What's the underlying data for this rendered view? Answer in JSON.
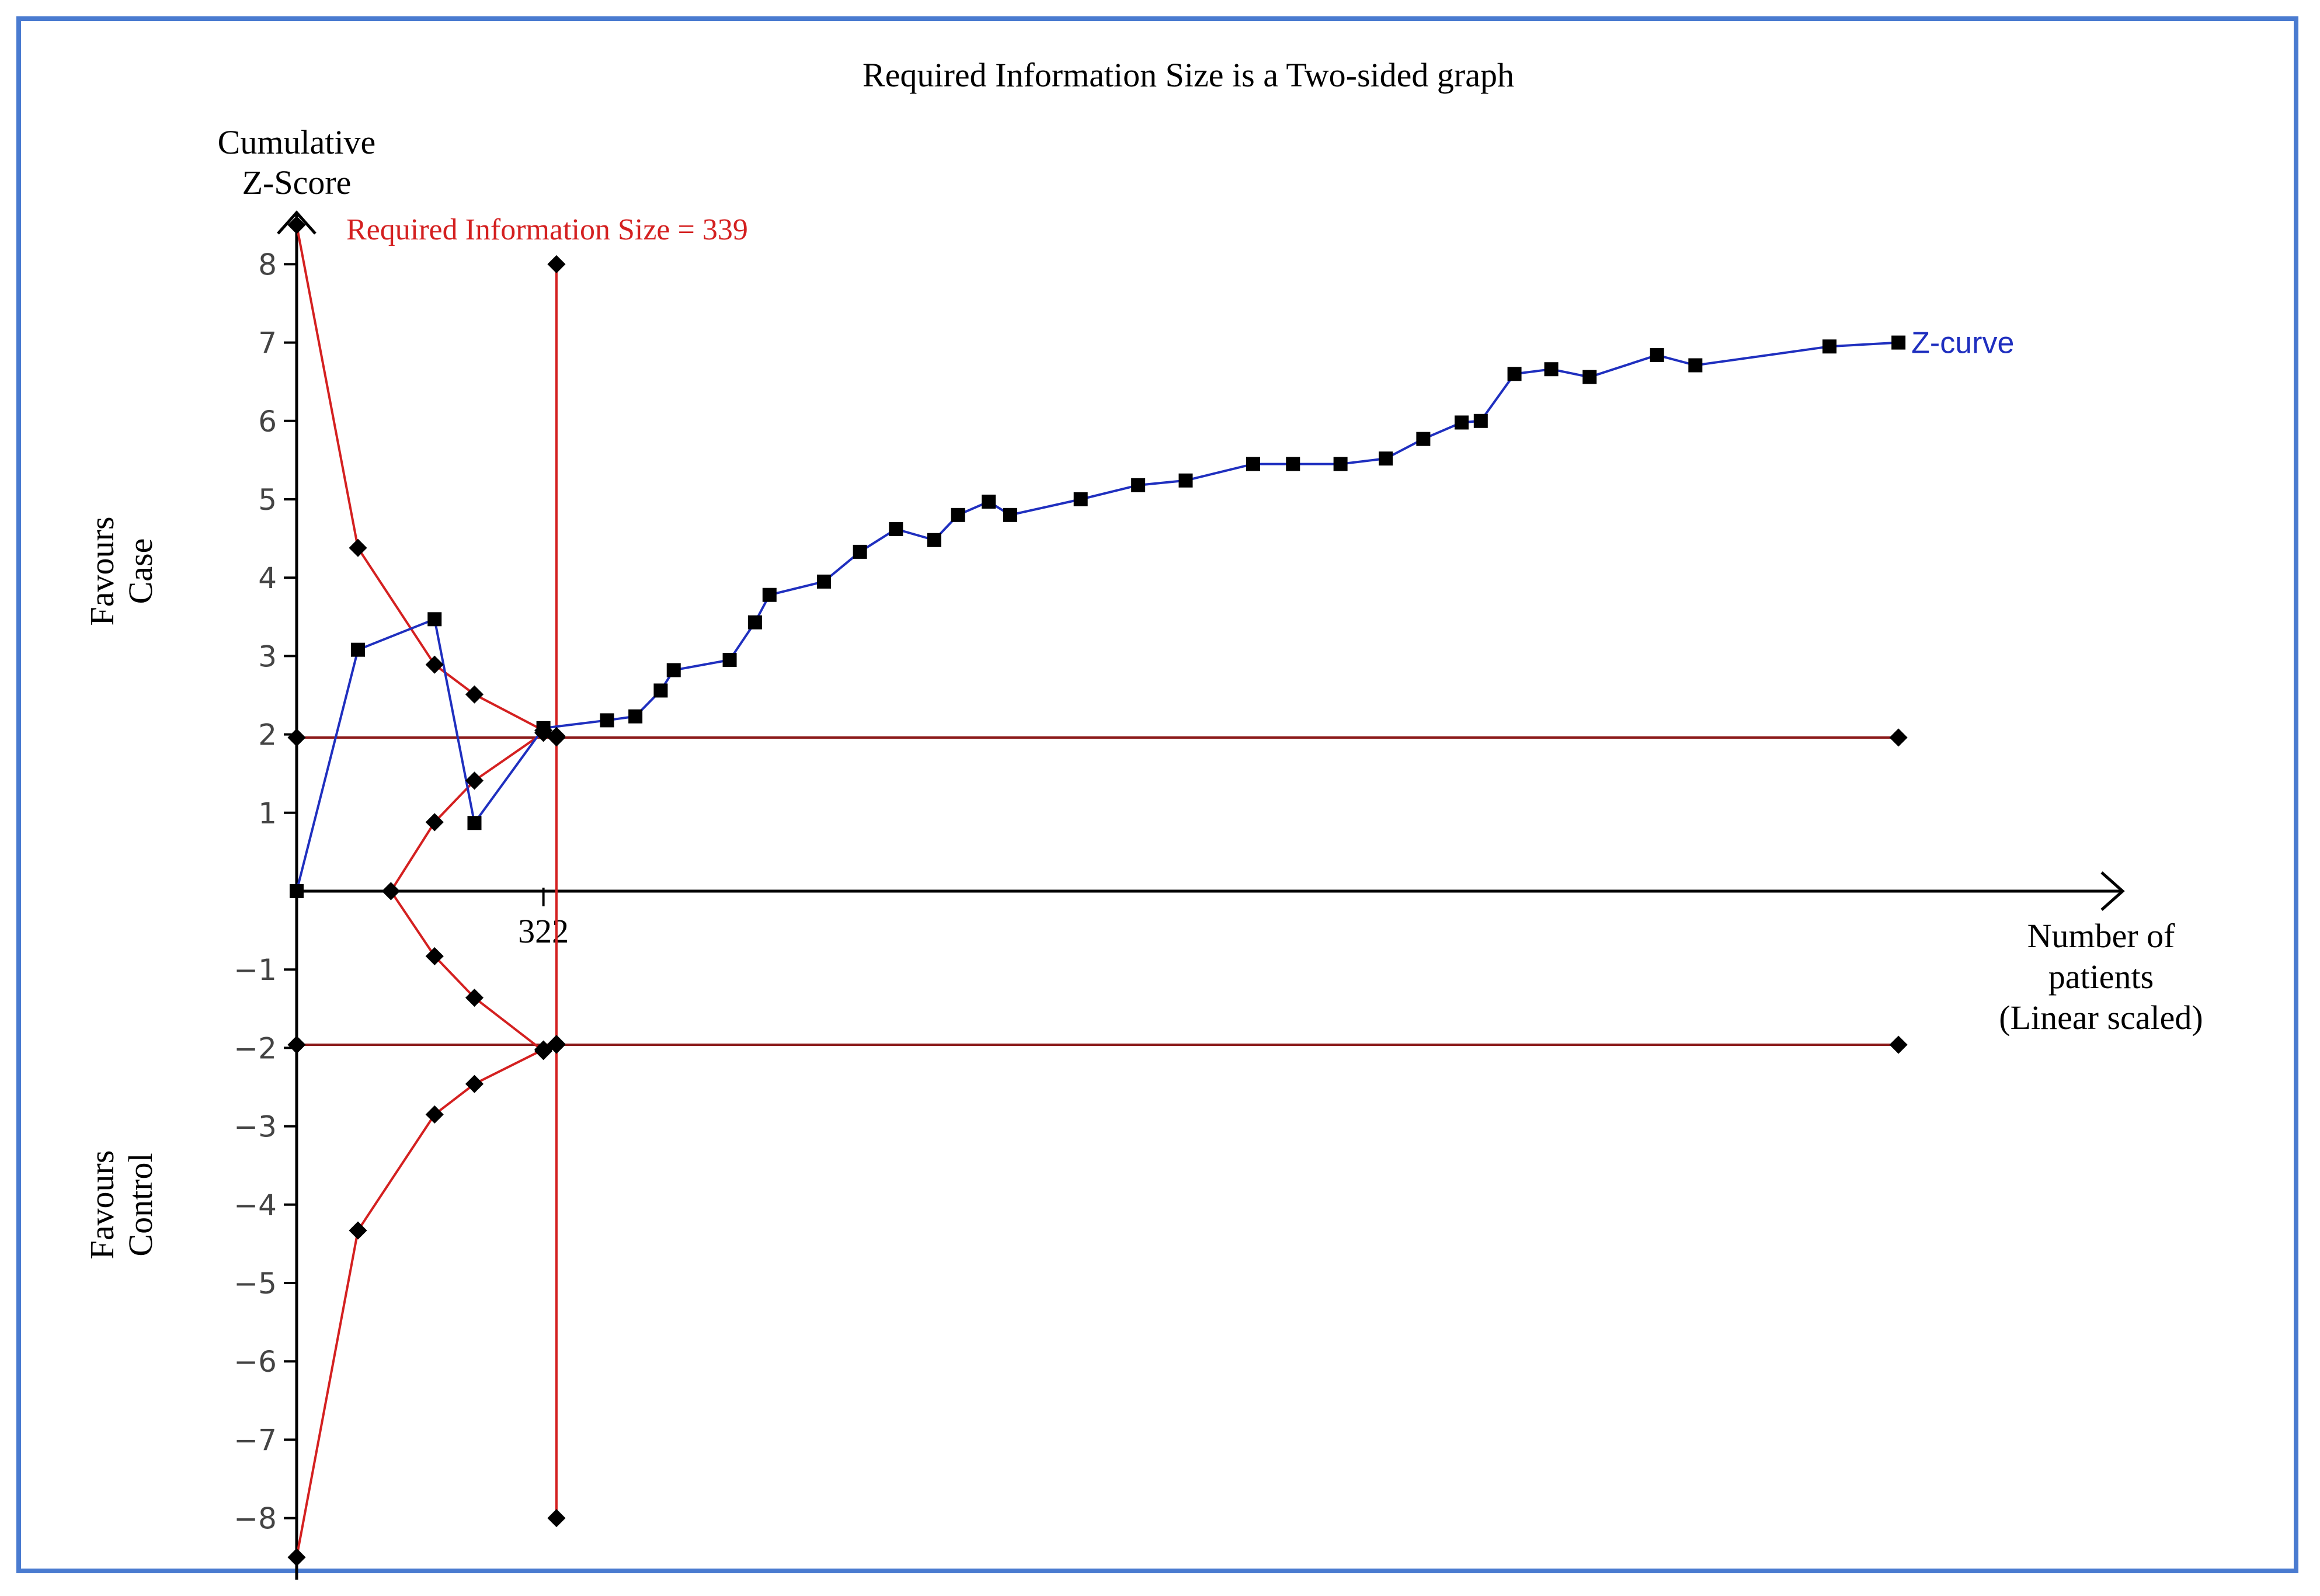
{
  "chart_data": {
    "type": "line",
    "title": "Required Information Size is a Two-sided graph",
    "ylabel_lines": [
      "Cumulative",
      "Z-Score"
    ],
    "xlabel_lines": [
      "Number of",
      "patients",
      "(Linear scaled)"
    ],
    "favours_upper_lines": [
      "Favours",
      "Case"
    ],
    "favours_lower_lines": [
      "Favours",
      "Control"
    ],
    "y_ticks": [
      8,
      7,
      6,
      5,
      4,
      3,
      2,
      1,
      -1,
      -2,
      -3,
      -4,
      -5,
      -6,
      -7,
      -8
    ],
    "y_tick_labels": [
      "8",
      "7",
      "6",
      "5",
      "4",
      "3",
      "2",
      "1",
      "−1",
      "−2",
      "−3",
      "−4",
      "−5",
      "−6",
      "−7",
      "−8"
    ],
    "ylim": [
      -8.5,
      8.5
    ],
    "xlim": [
      0,
      2100
    ],
    "x_tick": 322,
    "x_tick_label": "322",
    "ris_label": "Required Information Size = 339",
    "ris_x": 339,
    "ris_line_range": [
      -8,
      8
    ],
    "conventional_boundary": 1.96,
    "boundary_x_max": 2090,
    "grid": false,
    "colors": {
      "z_curve": "#1f2fbf",
      "boundary": "#d42020",
      "horizontal": "#8b1a1a",
      "marker": "#000000",
      "frame": "#4a7bd0"
    },
    "series": [
      {
        "name": "Z-curve",
        "x": [
          0,
          80,
          180,
          232,
          322,
          405,
          442,
          475,
          492,
          565,
          598,
          617,
          688,
          735,
          782,
          832,
          863,
          903,
          931,
          1023,
          1098,
          1160,
          1248,
          1300,
          1362,
          1421,
          1470,
          1520,
          1545,
          1589,
          1637,
          1687,
          1775,
          1825,
          2000,
          2090
        ],
        "y": [
          0,
          3.08,
          3.47,
          0.87,
          2.08,
          2.18,
          2.23,
          2.56,
          2.82,
          2.95,
          3.43,
          3.78,
          3.95,
          4.33,
          4.62,
          4.48,
          4.8,
          4.97,
          4.8,
          5.0,
          5.18,
          5.24,
          5.45,
          5.45,
          5.45,
          5.52,
          5.77,
          5.98,
          6.0,
          6.6,
          6.66,
          6.56,
          6.84,
          6.71,
          6.95,
          7.0
        ]
      },
      {
        "name": "",
        "role": "upper-boundary",
        "x": [
          0,
          80,
          180,
          232,
          322
        ],
        "y": [
          8.5,
          4.38,
          2.89,
          2.51,
          2.05
        ]
      },
      {
        "name": "",
        "role": "lower-boundary",
        "x": [
          0,
          80,
          180,
          232,
          322
        ],
        "y": [
          -8.5,
          -4.33,
          -2.85,
          -2.46,
          -2.02
        ]
      },
      {
        "name": "",
        "role": "upper-futility",
        "x": [
          123,
          180,
          232,
          322,
          339
        ],
        "y": [
          0,
          0.88,
          1.41,
          2.02,
          1.98
        ]
      },
      {
        "name": "",
        "role": "lower-futility",
        "x": [
          123,
          180,
          232,
          322,
          339
        ],
        "y": [
          0,
          -0.83,
          -1.36,
          -2.04,
          -1.95
        ]
      }
    ]
  }
}
